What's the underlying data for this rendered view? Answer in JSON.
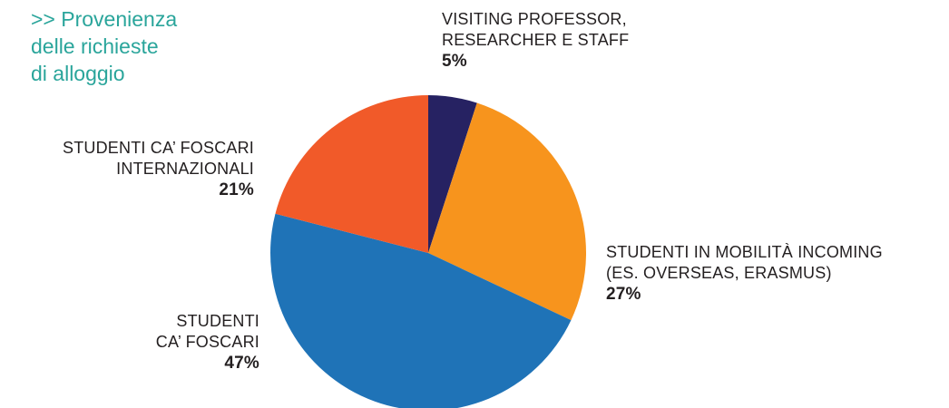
{
  "title_lines": [
    ">> Provenienza",
    "delle richieste",
    "di alloggio"
  ],
  "chart_data": {
    "type": "pie",
    "title": ">> Provenienza delle richieste di alloggio",
    "slices": [
      {
        "label_lines": [
          "VISITING PROFESSOR,",
          "RESEARCHER E STAFF"
        ],
        "value": 5,
        "value_label": "5%",
        "color": "#262262"
      },
      {
        "label_lines": [
          "STUDENTI IN MOBILITÀ INCOMING",
          "(ES. OVERSEAS, ERASMUS)"
        ],
        "value": 27,
        "value_label": "27%",
        "color": "#f7941d"
      },
      {
        "label_lines": [
          "STUDENTI",
          "CA’ FOSCARI"
        ],
        "value": 47,
        "value_label": "47%",
        "color": "#1f73b7"
      },
      {
        "label_lines": [
          "STUDENTI CA’ FOSCARI",
          "INTERNAZIONALI"
        ],
        "value": 21,
        "value_label": "21%",
        "color": "#f15a29"
      }
    ],
    "start": "12 o'clock",
    "direction": "clockwise",
    "legend": "none"
  }
}
